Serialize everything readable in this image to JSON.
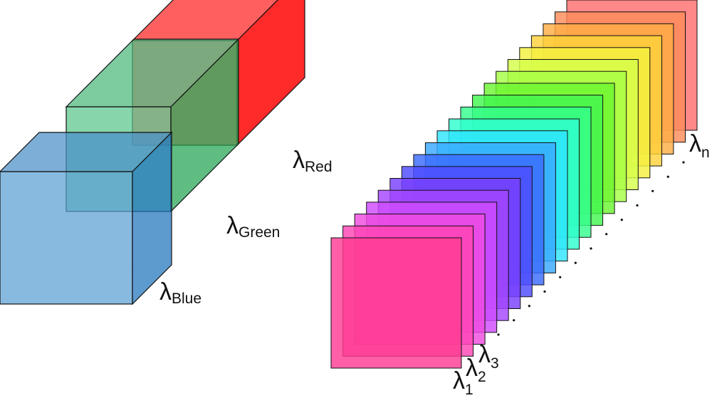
{
  "rgb_cubes": [
    {
      "id": "red",
      "sub": "Red",
      "front": "#ff8080",
      "top": "#ff5f5f",
      "side": "#ff2a2a"
    },
    {
      "id": "green",
      "sub": "Green",
      "front": "#57c58a",
      "top": "#4ab87b",
      "side": "#22a350"
    },
    {
      "id": "blue",
      "sub": "Blue",
      "front": "#5a9fd4",
      "top": "#4a8fc9",
      "side": "#1f73bb"
    }
  ],
  "lambda": "λ",
  "spectral_stack": {
    "first_subs": [
      "1",
      "2",
      "3"
    ],
    "last_sub": "n",
    "layer_colors": [
      "#ff6e6e",
      "#ff8c5a",
      "#ffad45",
      "#ffd23a",
      "#f4f040",
      "#d4ff4a",
      "#a6ff46",
      "#6bf532",
      "#42f54f",
      "#35ff8c",
      "#2effcf",
      "#2ee4ff",
      "#3aa8ff",
      "#3b6bff",
      "#4e4cff",
      "#7a40ff",
      "#a545ff",
      "#cf4cff",
      "#f04ce0",
      "#ff45b4",
      "#ff3c92"
    ]
  }
}
